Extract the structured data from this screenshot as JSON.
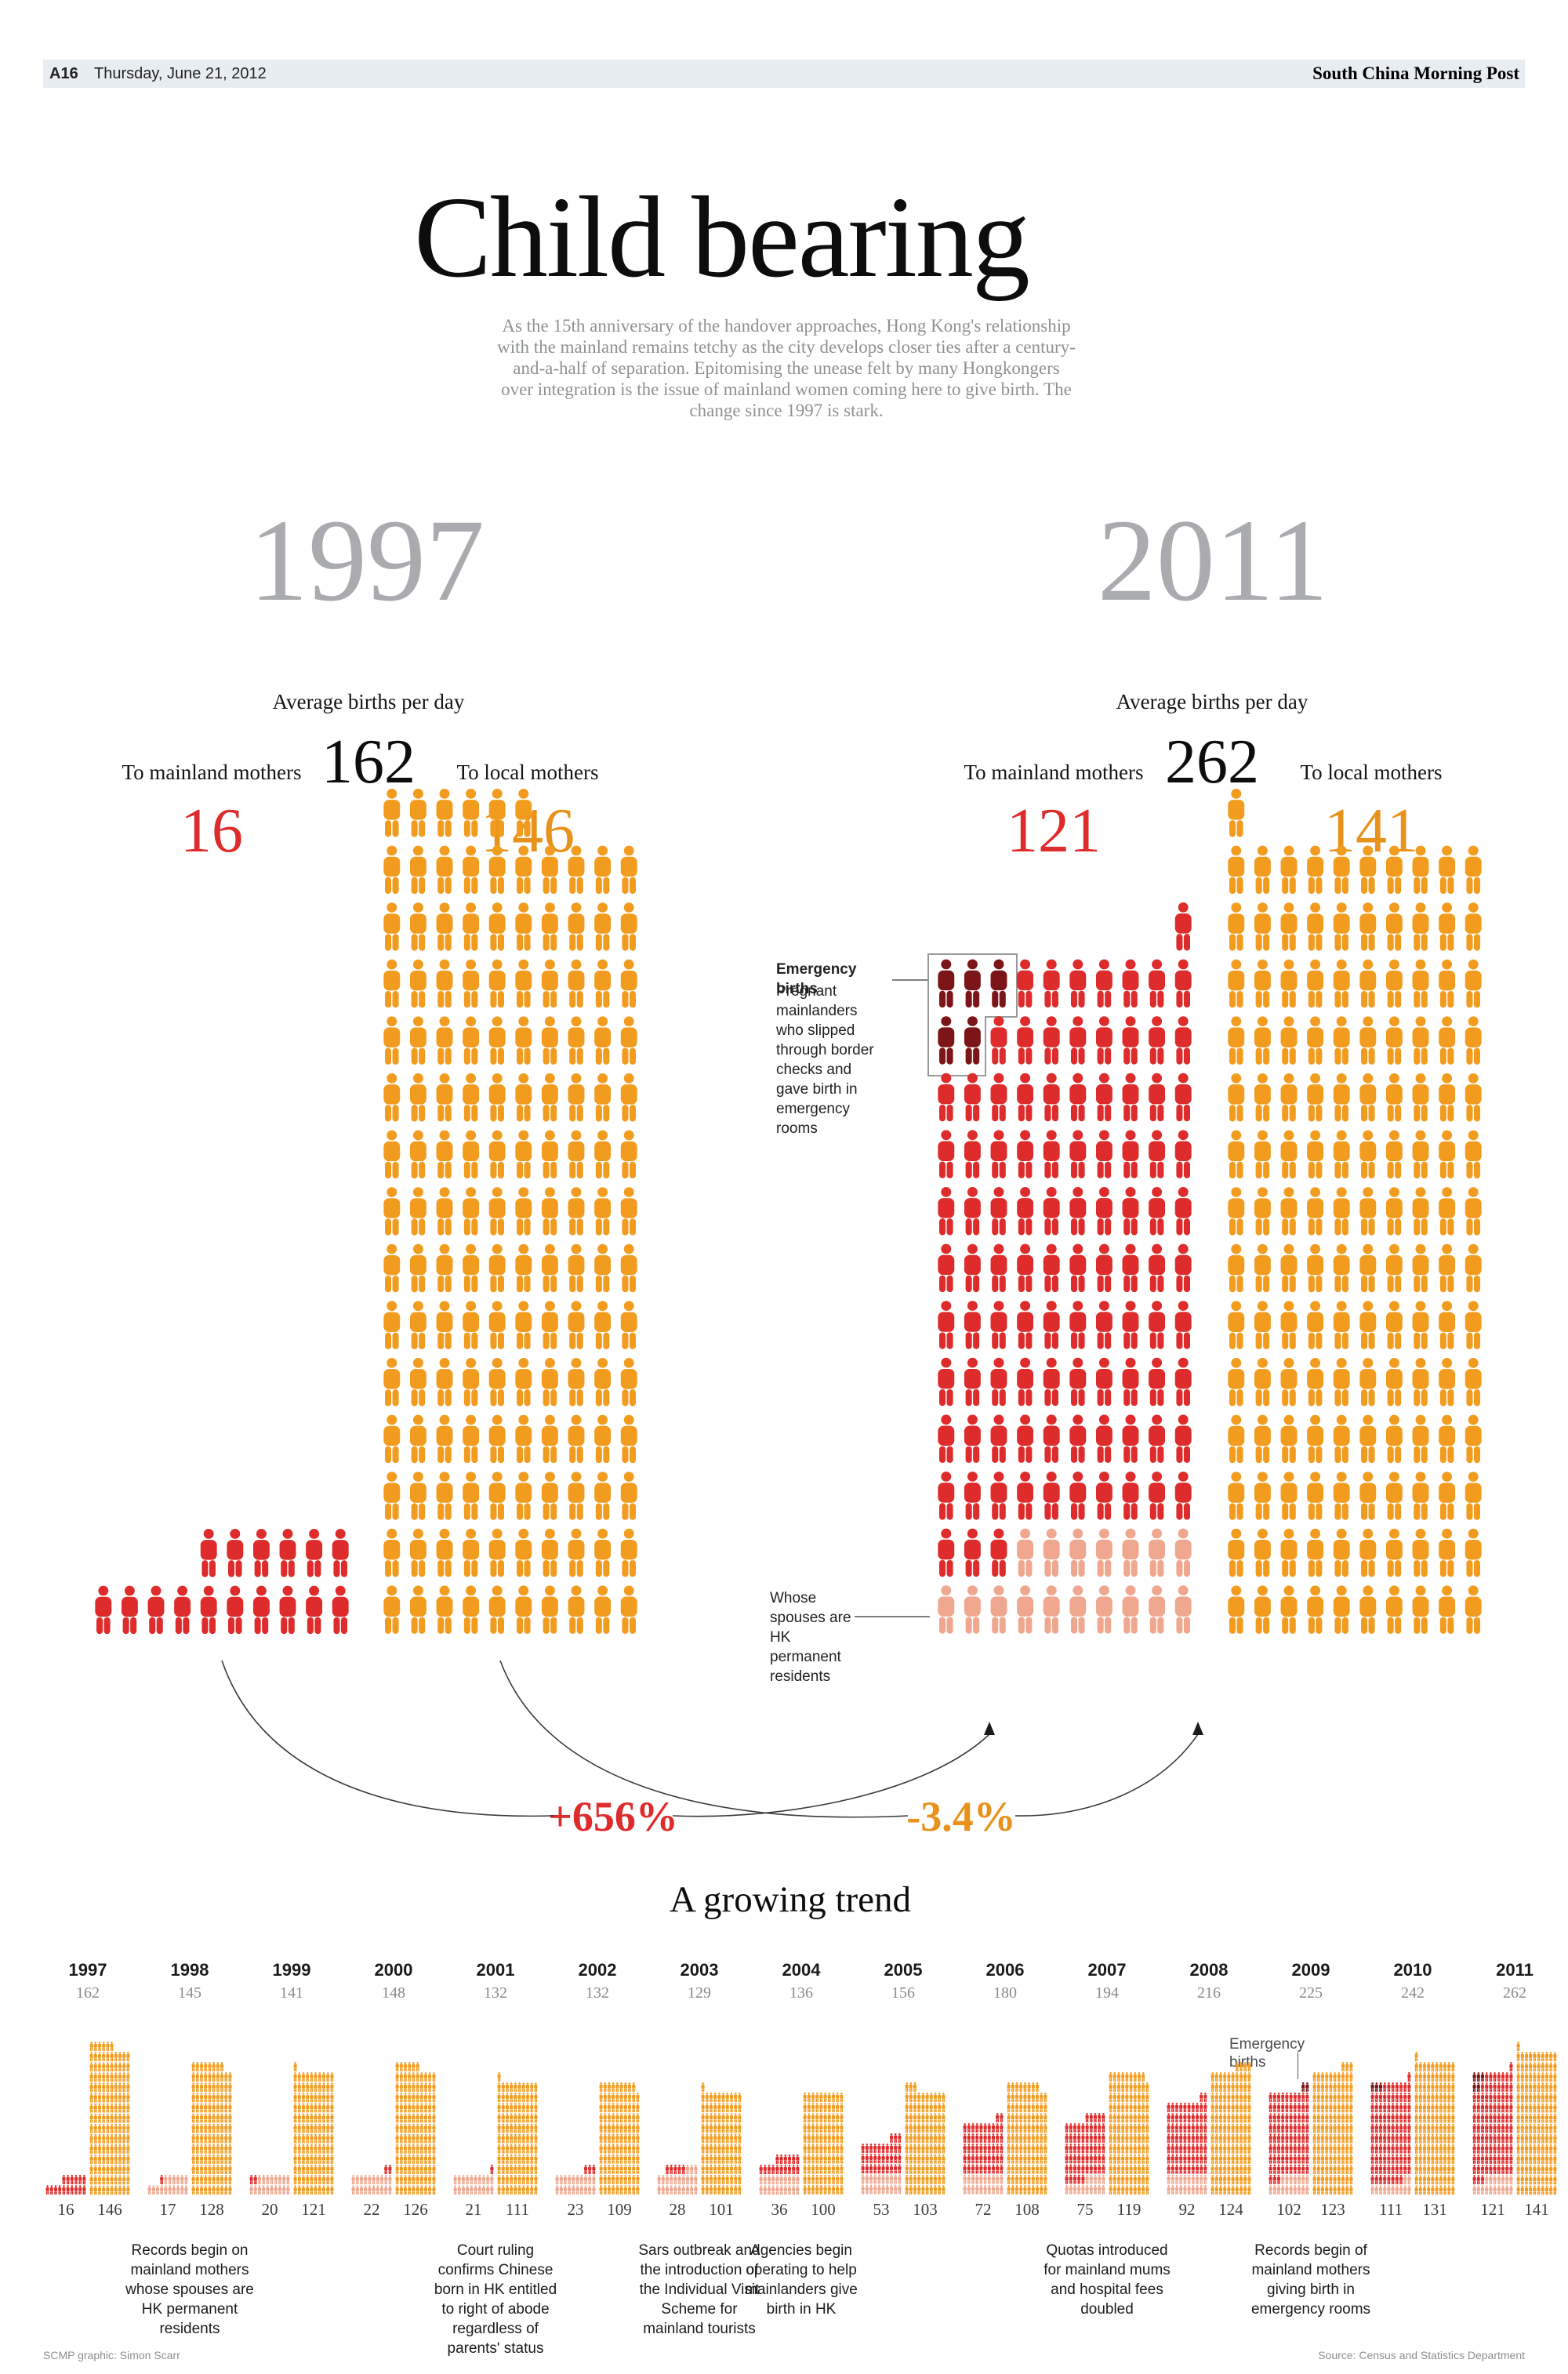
{
  "colors": {
    "orange": "#f29c1f",
    "red": "#de2b2b",
    "dark_red": "#7c1518",
    "pink": "#f0a78f",
    "gray_numeral": "#a9abae",
    "masthead_bg": "#e7edf0",
    "line": "#444444"
  },
  "masthead": {
    "page_no": "A16",
    "date": "Thursday, June 21, 2012",
    "paper": "South China Morning Post"
  },
  "headline": "Child bearing",
  "intro": "As the 15th anniversary of the handover approaches, Hong Kong's relationship with the mainland remains tetchy as the city develops closer ties after a century-and-a-half of separation. Epitomising the unease felt by many Hongkongers over integration is the issue of mainland women coming here to give birth. The change since 1997 is stark.",
  "compare": {
    "avg_label": "Average births per day",
    "mainland_label": "To mainland mothers",
    "local_label": "To local mothers",
    "y1997": {
      "year": "1997",
      "avg": "162",
      "mainland": "16",
      "local": "146"
    },
    "y2011": {
      "year": "2011",
      "avg": "262",
      "mainland": "121",
      "local": "141"
    },
    "pct_mainland": "+656%",
    "pct_local": "-3.4%",
    "emergency_note_title": "Emergency births",
    "emergency_note_body": "Pregnant mainlanders who slipped through border checks and gave birth in emergency rooms",
    "spouses_note": "Whose spouses are HK permanent residents",
    "blocks": {
      "mainland1997": {
        "total": 16,
        "align": "right",
        "segments": [
          [
            "red",
            16
          ]
        ]
      },
      "local1997": {
        "total": 146,
        "align": "left",
        "segments": [
          [
            "orange",
            146
          ]
        ]
      },
      "mainland2011": {
        "total": 121,
        "align": "right",
        "segments": [
          [
            "red",
            1
          ],
          [
            "dark",
            3
          ],
          [
            "red",
            7
          ],
          [
            "dark",
            2
          ],
          [
            "red",
            91
          ],
          [
            "pink",
            17
          ]
        ]
      },
      "local2011": {
        "total": 141,
        "align": "left",
        "segments": [
          [
            "orange",
            141
          ]
        ]
      }
    }
  },
  "trend": {
    "title": "A growing trend",
    "emergency_label": "Emergency births",
    "charts": [
      {
        "year": "1997",
        "avg": "162",
        "mainland": "16",
        "local": "146",
        "m": [
          [
            "red",
            16
          ]
        ],
        "l": [
          [
            "orange",
            146
          ]
        ],
        "l_align": "left"
      },
      {
        "year": "1998",
        "avg": "145",
        "mainland": "17",
        "local": "128",
        "m": [
          [
            "red",
            1
          ],
          [
            "pink",
            16
          ]
        ],
        "l": [
          [
            "orange",
            128
          ]
        ],
        "l_align": "left"
      },
      {
        "year": "1999",
        "avg": "141",
        "mainland": "20",
        "local": "121",
        "m": [
          [
            "red",
            2
          ],
          [
            "pink",
            18
          ]
        ],
        "l": [
          [
            "orange",
            121
          ]
        ],
        "l_align": "left"
      },
      {
        "year": "2000",
        "avg": "148",
        "mainland": "22",
        "local": "126",
        "m": [
          [
            "red",
            2
          ],
          [
            "pink",
            20
          ]
        ],
        "l": [
          [
            "orange",
            126
          ]
        ],
        "l_align": "left"
      },
      {
        "year": "2001",
        "avg": "132",
        "mainland": "21",
        "local": "111",
        "m": [
          [
            "red",
            1
          ],
          [
            "pink",
            20
          ]
        ],
        "l": [
          [
            "orange",
            111
          ]
        ],
        "l_align": "left"
      },
      {
        "year": "2002",
        "avg": "132",
        "mainland": "23",
        "local": "109",
        "m": [
          [
            "red",
            3
          ],
          [
            "pink",
            20
          ]
        ],
        "l": [
          [
            "orange",
            109
          ]
        ],
        "l_align": "left"
      },
      {
        "year": "2003",
        "avg": "129",
        "mainland": "28",
        "local": "101",
        "m": [
          [
            "red",
            5
          ],
          [
            "pink",
            23
          ]
        ],
        "l": [
          [
            "orange",
            101
          ]
        ],
        "l_align": "left"
      },
      {
        "year": "2004",
        "avg": "136",
        "mainland": "36",
        "local": "100",
        "m": [
          [
            "red",
            16
          ],
          [
            "pink",
            20
          ]
        ],
        "l": [
          [
            "orange",
            100
          ]
        ],
        "l_align": "left"
      },
      {
        "year": "2005",
        "avg": "156",
        "mainland": "53",
        "local": "103",
        "m": [
          [
            "red",
            33
          ],
          [
            "pink",
            20
          ]
        ],
        "l": [
          [
            "orange",
            103
          ]
        ],
        "l_align": "left"
      },
      {
        "year": "2006",
        "avg": "180",
        "mainland": "72",
        "local": "108",
        "m": [
          [
            "red",
            52
          ],
          [
            "pink",
            20
          ]
        ],
        "l": [
          [
            "orange",
            108
          ]
        ],
        "l_align": "left"
      },
      {
        "year": "2007",
        "avg": "194",
        "mainland": "75",
        "local": "119",
        "m": [
          [
            "red",
            60
          ],
          [
            "pink",
            15
          ]
        ],
        "l": [
          [
            "orange",
            119
          ]
        ],
        "l_align": "left"
      },
      {
        "year": "2008",
        "avg": "216",
        "mainland": "92",
        "local": "124",
        "m": [
          [
            "red",
            72
          ],
          [
            "pink",
            20
          ]
        ],
        "l": [
          [
            "orange",
            124
          ]
        ],
        "l_align": "right"
      },
      {
        "year": "2009",
        "avg": "225",
        "mainland": "102",
        "local": "123",
        "m": [
          [
            "dark",
            2
          ],
          [
            "red",
            83
          ],
          [
            "pink",
            17
          ]
        ],
        "l": [
          [
            "orange",
            123
          ]
        ],
        "l_align": "right"
      },
      {
        "year": "2010",
        "avg": "242",
        "mainland": "111",
        "local": "131",
        "m": [
          [
            "red",
            1
          ],
          [
            "dark",
            3
          ],
          [
            "red",
            95
          ],
          [
            "pink",
            12
          ]
        ],
        "l": [
          [
            "orange",
            131
          ]
        ],
        "l_align": "left"
      },
      {
        "year": "2011",
        "avg": "262",
        "mainland": "121",
        "local": "141",
        "m": [
          [
            "red",
            1
          ],
          [
            "dark",
            3
          ],
          [
            "red",
            7
          ],
          [
            "dark",
            2
          ],
          [
            "red",
            91
          ],
          [
            "pink",
            17
          ]
        ],
        "l": [
          [
            "orange",
            141
          ]
        ],
        "l_align": "left"
      }
    ],
    "notes": [
      {
        "year": "1998",
        "text": "Records begin on mainland mothers whose spouses are HK permanent residents"
      },
      {
        "year": "2001",
        "text": "Court ruling confirms Chinese born in HK entitled to right of abode regardless of parents' status"
      },
      {
        "year": "2003",
        "text": "Sars outbreak and the introduction of the Individual Visit Scheme for mainland tourists"
      },
      {
        "year": "2004",
        "text": "Agencies begin operating to help mainlanders give birth in HK"
      },
      {
        "year": "2007",
        "text": "Quotas introduced for mainland mums and hospital fees doubled"
      },
      {
        "year": "2009",
        "text": "Records begin of mainland mothers giving birth in emergency rooms"
      }
    ]
  },
  "footer": {
    "credit": "SCMP graphic: Simon Scarr",
    "source": "Source: Census and Statistics Department"
  },
  "chart_data": {
    "type": "bar",
    "title": "Child bearing",
    "subtitle": "A growing trend",
    "unit": "average births per day",
    "categories": [
      1997,
      1998,
      1999,
      2000,
      2001,
      2002,
      2003,
      2004,
      2005,
      2006,
      2007,
      2008,
      2009,
      2010,
      2011
    ],
    "series": [
      {
        "name": "Average births per day (total)",
        "values": [
          162,
          145,
          141,
          148,
          132,
          132,
          129,
          136,
          156,
          180,
          194,
          216,
          225,
          242,
          262
        ]
      },
      {
        "name": "To mainland mothers",
        "values": [
          16,
          17,
          20,
          22,
          21,
          23,
          28,
          36,
          53,
          72,
          75,
          92,
          102,
          111,
          121
        ]
      },
      {
        "name": "To local mothers",
        "values": [
          146,
          128,
          121,
          126,
          111,
          109,
          101,
          100,
          103,
          108,
          119,
          124,
          123,
          131,
          141
        ]
      }
    ],
    "annotations": [
      "+656% change in births to mainland mothers between 1997 and 2011",
      "-3.4% change in births to local mothers between 1997 and 2011",
      "2011: 5 emergency births (pregnant mainlanders who slipped through border checks)",
      "2011: 17 mainland mothers whose spouses are HK permanent residents"
    ],
    "legend": [
      "orange = local mothers",
      "red = mainland mothers",
      "dark red = emergency births",
      "pink = spouses are HK permanent residents"
    ]
  }
}
